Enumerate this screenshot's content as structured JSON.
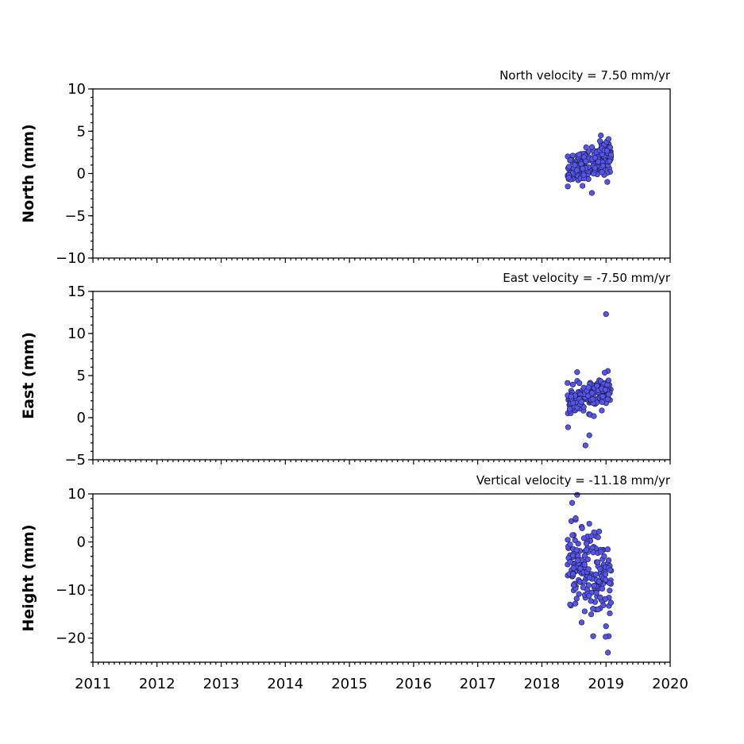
{
  "chart_data": [
    {
      "type": "scatter",
      "title": "North velocity = 7.50 mm/yr",
      "ylabel": "North (mm)",
      "xlim": [
        2011,
        2020
      ],
      "ylim": [
        -10,
        10
      ],
      "yticks": [
        -10,
        -5,
        0,
        5,
        10
      ],
      "ytick_labels": [
        "−10",
        "−5",
        "0",
        "5",
        "10"
      ],
      "marker_color": "#5555ee",
      "series": [
        {
          "x": [],
          "y": []
        }
      ]
    },
    {
      "type": "scatter",
      "title": "East velocity = -7.50 mm/yr",
      "ylabel": "East (mm)",
      "xlim": [
        2011,
        2020
      ],
      "ylim": [
        -5,
        15
      ],
      "yticks": [
        -5,
        0,
        5,
        10,
        15
      ],
      "ytick_labels": [
        "−5",
        "0",
        "5",
        "10",
        "15"
      ],
      "marker_color": "#5555ee",
      "series": [
        {
          "x": [],
          "y": []
        }
      ]
    },
    {
      "type": "scatter",
      "title": "Vertical velocity = -11.18 mm/yr",
      "ylabel": "Height (mm)",
      "xlim": [
        2011,
        2020
      ],
      "ylim": [
        -25,
        10
      ],
      "yticks": [
        -20,
        -10,
        0,
        10
      ],
      "ytick_labels": [
        "−20",
        "−10",
        "0",
        "10"
      ],
      "marker_color": "#5555ee",
      "series": [
        {
          "x": [],
          "y": []
        }
      ]
    }
  ],
  "xticks": [
    2011,
    2012,
    2013,
    2014,
    2015,
    2016,
    2017,
    2018,
    2019,
    2020
  ],
  "xtick_labels": [
    "2011",
    "2012",
    "2013",
    "2014",
    "2015",
    "2016",
    "2017",
    "2018",
    "2019",
    "2020"
  ]
}
